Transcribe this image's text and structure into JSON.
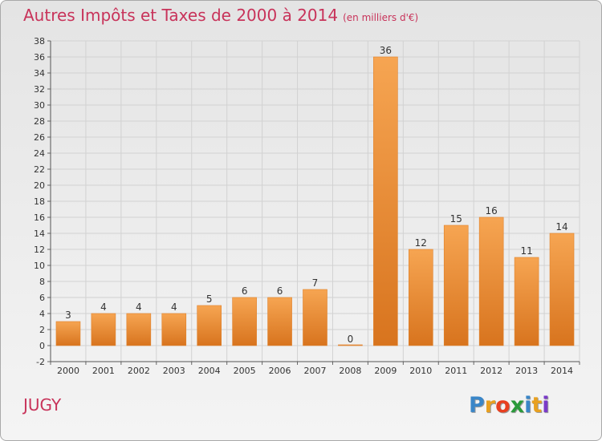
{
  "header": {
    "title": "Autres Impôts et Taxes de 2000 à 2014",
    "unit": "(en milliers d'€)"
  },
  "footer": {
    "commune": "JUGY",
    "logo_letters": [
      "P",
      "r",
      "o",
      "x",
      "i",
      "t",
      "i"
    ],
    "logo_colors": [
      "#3a86c8",
      "#e8a020",
      "#e84020",
      "#2a9a3a",
      "#3a86c8",
      "#e8a020",
      "#7a3ac8"
    ]
  },
  "chart_data": {
    "type": "bar",
    "categories": [
      "2000",
      "2001",
      "2002",
      "2003",
      "2004",
      "2005",
      "2006",
      "2007",
      "2008",
      "2009",
      "2010",
      "2011",
      "2012",
      "2013",
      "2014"
    ],
    "values": [
      3,
      4,
      4,
      4,
      5,
      6,
      6,
      7,
      0,
      36,
      12,
      15,
      16,
      11,
      14
    ],
    "ylim": [
      -2,
      38
    ],
    "yticks": [
      -2,
      0,
      2,
      4,
      6,
      8,
      10,
      12,
      14,
      16,
      18,
      20,
      22,
      24,
      26,
      28,
      30,
      32,
      34,
      36,
      38
    ],
    "grid": true,
    "bar_color_light": "#f6a552",
    "bar_color_dark": "#d8741e",
    "title_color": "#c8335a"
  }
}
